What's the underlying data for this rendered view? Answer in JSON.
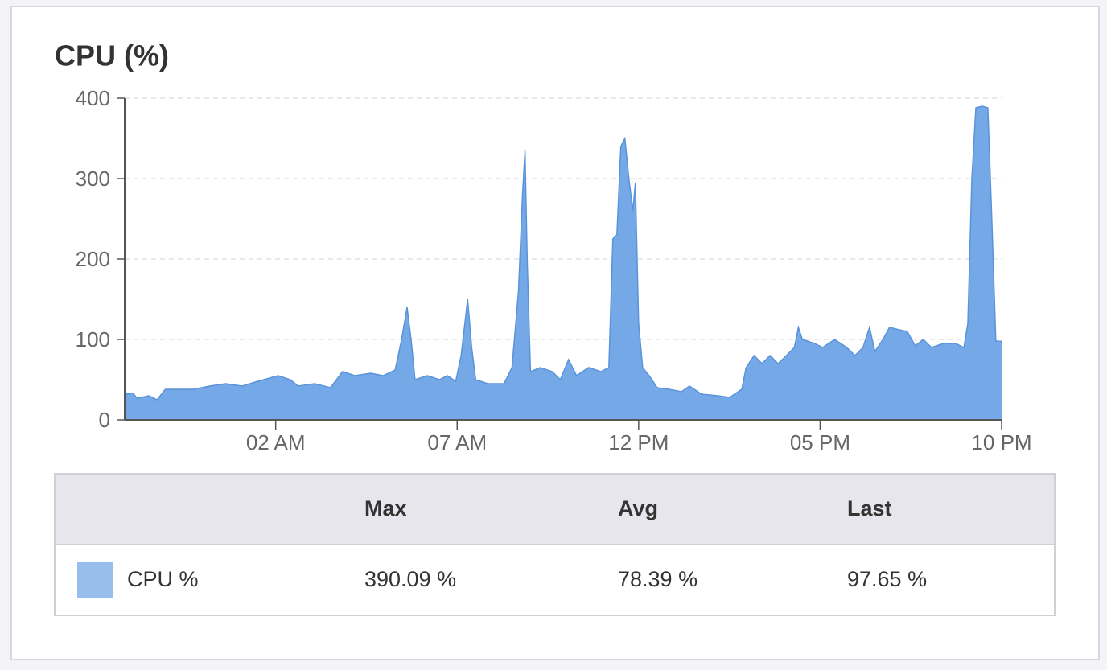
{
  "chart_data": {
    "type": "area",
    "title": "CPU (%)",
    "x": [
      -2.16,
      -1.93,
      -1.82,
      -1.49,
      -1.27,
      -1.04,
      -0.71,
      -0.27,
      0.18,
      0.62,
      1.07,
      1.51,
      2.07,
      2.4,
      2.62,
      3.07,
      3.51,
      3.84,
      4.18,
      4.62,
      4.96,
      5.29,
      5.47,
      5.62,
      5.73,
      5.84,
      6.18,
      6.51,
      6.73,
      6.96,
      7.11,
      7.29,
      7.4,
      7.51,
      7.84,
      8.29,
      8.51,
      8.69,
      8.8,
      8.87,
      8.93,
      9.02,
      9.29,
      9.62,
      9.84,
      10.07,
      10.29,
      10.62,
      10.96,
      11.18,
      11.29,
      11.4,
      11.51,
      11.62,
      11.73,
      11.84,
      11.91,
      12.0,
      12.11,
      12.29,
      12.51,
      12.84,
      13.18,
      13.4,
      13.73,
      14.18,
      14.51,
      14.84,
      14.96,
      15.18,
      15.4,
      15.62,
      15.84,
      16.07,
      16.29,
      16.4,
      16.51,
      16.84,
      17.07,
      17.4,
      17.73,
      17.96,
      18.18,
      18.36,
      18.51,
      18.73,
      18.91,
      19.18,
      19.4,
      19.62,
      19.84,
      20.07,
      20.4,
      20.73,
      20.96,
      21.07,
      21.18,
      21.29,
      21.47,
      21.62,
      21.73,
      21.84,
      22.0
    ],
    "series": [
      {
        "name": "CPU %",
        "color": "#74a8e6",
        "values": [
          32,
          33,
          27,
          30,
          25,
          38,
          38,
          38,
          42,
          45,
          42,
          48,
          55,
          50,
          42,
          45,
          40,
          60,
          55,
          58,
          55,
          62,
          100,
          140,
          100,
          50,
          55,
          50,
          55,
          48,
          80,
          150,
          90,
          50,
          45,
          45,
          65,
          160,
          280,
          335,
          200,
          60,
          65,
          60,
          50,
          75,
          55,
          65,
          60,
          65,
          225,
          230,
          340,
          350,
          300,
          260,
          295,
          120,
          65,
          55,
          40,
          38,
          35,
          42,
          32,
          30,
          28,
          38,
          65,
          80,
          70,
          80,
          70,
          80,
          90,
          115,
          100,
          95,
          90,
          100,
          90,
          80,
          90,
          115,
          85,
          100,
          115,
          112,
          110,
          92,
          100,
          90,
          95,
          95,
          90,
          120,
          300,
          388,
          390,
          388,
          250,
          98,
          97.65
        ]
      }
    ],
    "xlim": [
      -2.16,
      22
    ],
    "xticks": [
      {
        "value": 2,
        "label": "02 AM"
      },
      {
        "value": 7,
        "label": "07 AM"
      },
      {
        "value": 12,
        "label": "12 PM"
      },
      {
        "value": 17,
        "label": "05 PM"
      },
      {
        "value": 22,
        "label": "10 PM"
      }
    ],
    "ylim": [
      0,
      400
    ],
    "yticks": [
      0,
      100,
      200,
      300,
      400
    ],
    "grid": true,
    "stats": {
      "columns": [
        "Max",
        "Avg",
        "Last"
      ],
      "values": [
        "390.09 %",
        "78.39 %",
        "97.65 %"
      ]
    }
  }
}
